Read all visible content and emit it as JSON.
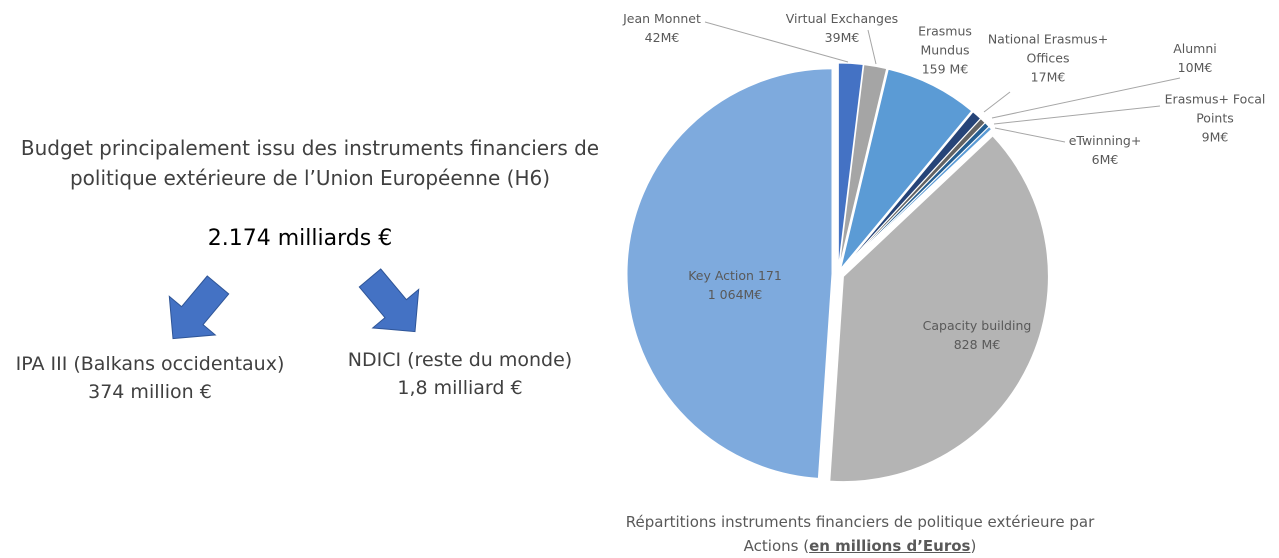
{
  "left_panel": {
    "title": "Budget principalement issu des instruments financiers de politique extérieure de l’Union Européenne (H6)",
    "total": "2.174 milliards €",
    "branches": [
      {
        "name": "IPA III (Balkans occidentaux)",
        "amount": "374 million €"
      },
      {
        "name": "NDICI (reste du monde)",
        "amount": "1,8 milliard €"
      }
    ]
  },
  "chart_data": {
    "type": "pie",
    "categories": [
      "Jean Monnet",
      "Virtual Exchanges",
      "Erasmus Mundus",
      "National Erasmus+ Offices",
      "Alumni",
      "Erasmus+ Focal Points",
      "eTwinning+",
      "Capacity building",
      "Key Action 171"
    ],
    "values": [
      42,
      39,
      159,
      17,
      10,
      9,
      6,
      828,
      1064
    ],
    "value_labels": [
      "42M€",
      "39M€",
      "159 M€",
      "17M€",
      "10M€",
      "9M€",
      "6M€",
      "828 M€",
      "1 064M€"
    ],
    "colors": [
      "#4472c4",
      "#a5a5a5",
      "#5b9bd5",
      "#264478",
      "#636363",
      "#255e91",
      "#5b9bd5",
      "#b4b4b4",
      "#7eaadd"
    ],
    "caption": {
      "prefix": "Répartitions instruments financiers de politique extérieure par Actions (",
      "emphasis": "en millions d’Euros",
      "suffix": ")"
    }
  }
}
